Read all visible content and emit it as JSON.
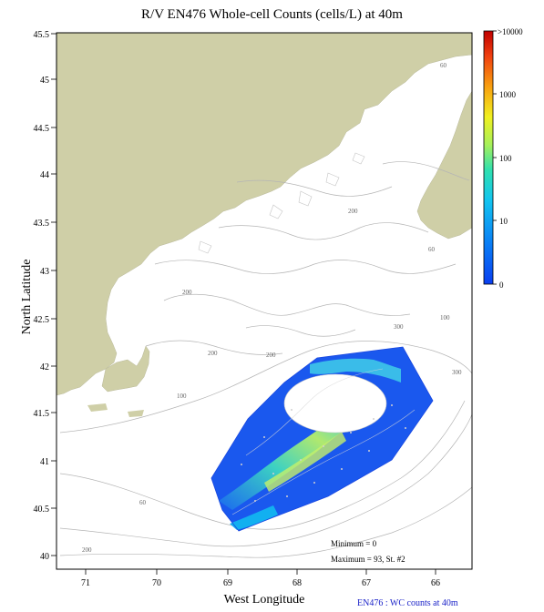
{
  "title": "R/V EN476 Whole-cell Counts (cells/L) at 40m",
  "xlabel": "West Longitude",
  "ylabel": "North Latitude",
  "footnote": "EN476 : WC counts at 40m",
  "stats": {
    "minimum": "Minimum = 0",
    "maximum": "Maximum = 93, St. #2"
  },
  "lon_ticks": [
    "71",
    "70",
    "69",
    "68",
    "67",
    "66"
  ],
  "lat_ticks": [
    "45.5",
    "45",
    "44.5",
    "44",
    "43.5",
    "43",
    "42.5",
    "42",
    "41.5",
    "41",
    "40.5",
    "40"
  ],
  "colorbar": {
    "labels": [
      ">10000",
      "1000",
      "100",
      "10",
      "0"
    ]
  },
  "contour_labels": [
    "60",
    "200",
    "200",
    "60",
    "200",
    "100",
    "300",
    "300",
    "200",
    "100",
    "60",
    "200"
  ],
  "colors": {
    "land": "#cfcfa7",
    "contour": "#b5b5b5",
    "frame": "#000000",
    "footnote": "#1a22c8"
  }
}
